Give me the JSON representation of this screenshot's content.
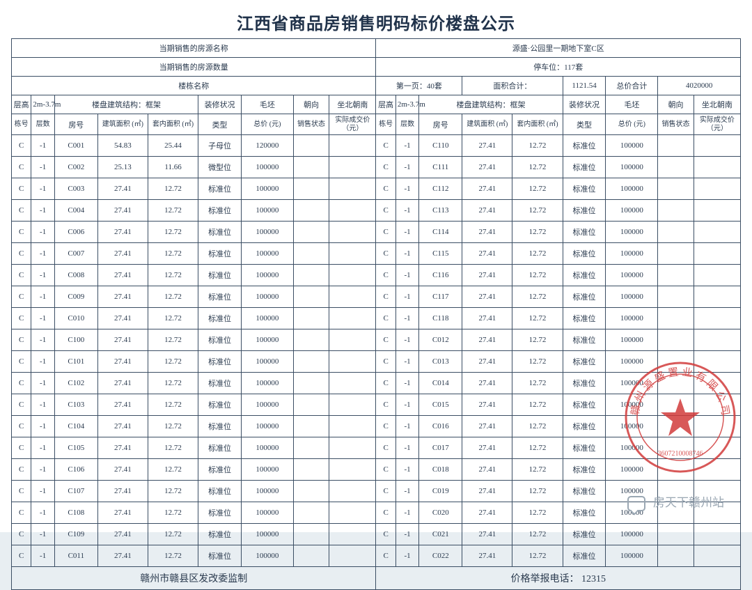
{
  "title": "江西省商品房销售明码标价楼盘公示",
  "header": {
    "src_name_label": "当期销售的房源名称",
    "src_name_value": "源盛·公园里一期地下室C区",
    "src_qty_label": "当期销售的房源数量",
    "src_qty_value": "停车位：117套",
    "bldg_name_label": "楼栋名称",
    "page_info": "第一页：40套",
    "area_total_label": "面积合计：",
    "area_total_value": "1121.54",
    "price_total_label": "总价合计",
    "price_total_value": "4020000",
    "height_label": "层高",
    "height_value": "2m-3.7m",
    "struct_label": "楼盘建筑结构：框架",
    "deco_label": "装修状况",
    "rough_label": "毛坯",
    "orient_label": "朝向",
    "orient_value": "坐北朝南",
    "cols": {
      "bldg": "栋号",
      "floor": "层数",
      "room": "房号",
      "area1": "建筑面积 (㎡)",
      "area2": "套内面积 (㎡)",
      "type": "类型",
      "price": "总价 (元)",
      "status": "销售状态",
      "actual": "实际成交价（元）"
    }
  },
  "rowsL": [
    [
      "C",
      "-1",
      "C001",
      "54.83",
      "25.44",
      "子母位",
      "120000",
      "",
      ""
    ],
    [
      "C",
      "-1",
      "C002",
      "25.13",
      "11.66",
      "微型位",
      "100000",
      "",
      ""
    ],
    [
      "C",
      "-1",
      "C003",
      "27.41",
      "12.72",
      "标准位",
      "100000",
      "",
      ""
    ],
    [
      "C",
      "-1",
      "C004",
      "27.41",
      "12.72",
      "标准位",
      "100000",
      "",
      ""
    ],
    [
      "C",
      "-1",
      "C006",
      "27.41",
      "12.72",
      "标准位",
      "100000",
      "",
      ""
    ],
    [
      "C",
      "-1",
      "C007",
      "27.41",
      "12.72",
      "标准位",
      "100000",
      "",
      ""
    ],
    [
      "C",
      "-1",
      "C008",
      "27.41",
      "12.72",
      "标准位",
      "100000",
      "",
      ""
    ],
    [
      "C",
      "-1",
      "C009",
      "27.41",
      "12.72",
      "标准位",
      "100000",
      "",
      ""
    ],
    [
      "C",
      "-1",
      "C010",
      "27.41",
      "12.72",
      "标准位",
      "100000",
      "",
      ""
    ],
    [
      "C",
      "-1",
      "C100",
      "27.41",
      "12.72",
      "标准位",
      "100000",
      "",
      ""
    ],
    [
      "C",
      "-1",
      "C101",
      "27.41",
      "12.72",
      "标准位",
      "100000",
      "",
      ""
    ],
    [
      "C",
      "-1",
      "C102",
      "27.41",
      "12.72",
      "标准位",
      "100000",
      "",
      ""
    ],
    [
      "C",
      "-1",
      "C103",
      "27.41",
      "12.72",
      "标准位",
      "100000",
      "",
      ""
    ],
    [
      "C",
      "-1",
      "C104",
      "27.41",
      "12.72",
      "标准位",
      "100000",
      "",
      ""
    ],
    [
      "C",
      "-1",
      "C105",
      "27.41",
      "12.72",
      "标准位",
      "100000",
      "",
      ""
    ],
    [
      "C",
      "-1",
      "C106",
      "27.41",
      "12.72",
      "标准位",
      "100000",
      "",
      ""
    ],
    [
      "C",
      "-1",
      "C107",
      "27.41",
      "12.72",
      "标准位",
      "100000",
      "",
      ""
    ],
    [
      "C",
      "-1",
      "C108",
      "27.41",
      "12.72",
      "标准位",
      "100000",
      "",
      ""
    ],
    [
      "C",
      "-1",
      "C109",
      "27.41",
      "12.72",
      "标准位",
      "100000",
      "",
      ""
    ],
    [
      "C",
      "-1",
      "C011",
      "27.41",
      "12.72",
      "标准位",
      "100000",
      "",
      ""
    ]
  ],
  "rowsR": [
    [
      "C",
      "-1",
      "C110",
      "27.41",
      "12.72",
      "标准位",
      "100000",
      "",
      ""
    ],
    [
      "C",
      "-1",
      "C111",
      "27.41",
      "12.72",
      "标准位",
      "100000",
      "",
      ""
    ],
    [
      "C",
      "-1",
      "C112",
      "27.41",
      "12.72",
      "标准位",
      "100000",
      "",
      ""
    ],
    [
      "C",
      "-1",
      "C113",
      "27.41",
      "12.72",
      "标准位",
      "100000",
      "",
      ""
    ],
    [
      "C",
      "-1",
      "C114",
      "27.41",
      "12.72",
      "标准位",
      "100000",
      "",
      ""
    ],
    [
      "C",
      "-1",
      "C115",
      "27.41",
      "12.72",
      "标准位",
      "100000",
      "",
      ""
    ],
    [
      "C",
      "-1",
      "C116",
      "27.41",
      "12.72",
      "标准位",
      "100000",
      "",
      ""
    ],
    [
      "C",
      "-1",
      "C117",
      "27.41",
      "12.72",
      "标准位",
      "100000",
      "",
      ""
    ],
    [
      "C",
      "-1",
      "C118",
      "27.41",
      "12.72",
      "标准位",
      "100000",
      "",
      ""
    ],
    [
      "C",
      "-1",
      "C012",
      "27.41",
      "12.72",
      "标准位",
      "100000",
      "",
      ""
    ],
    [
      "C",
      "-1",
      "C013",
      "27.41",
      "12.72",
      "标准位",
      "100000",
      "",
      ""
    ],
    [
      "C",
      "-1",
      "C014",
      "27.41",
      "12.72",
      "标准位",
      "100000",
      "",
      ""
    ],
    [
      "C",
      "-1",
      "C015",
      "27.41",
      "12.72",
      "标准位",
      "100000",
      "",
      ""
    ],
    [
      "C",
      "-1",
      "C016",
      "27.41",
      "12.72",
      "标准位",
      "100000",
      "",
      ""
    ],
    [
      "C",
      "-1",
      "C017",
      "27.41",
      "12.72",
      "标准位",
      "100000",
      "",
      ""
    ],
    [
      "C",
      "-1",
      "C018",
      "27.41",
      "12.72",
      "标准位",
      "100000",
      "",
      ""
    ],
    [
      "C",
      "-1",
      "C019",
      "27.41",
      "12.72",
      "标准位",
      "100000",
      "",
      ""
    ],
    [
      "C",
      "-1",
      "C020",
      "27.41",
      "12.72",
      "标准位",
      "100000",
      "",
      ""
    ],
    [
      "C",
      "-1",
      "C021",
      "27.41",
      "12.72",
      "标准位",
      "100000",
      "",
      ""
    ],
    [
      "C",
      "-1",
      "C022",
      "27.41",
      "12.72",
      "标准位",
      "100000",
      "",
      ""
    ]
  ],
  "footer": {
    "supervise": "赣州市赣县区发改委监制",
    "hotline_label": "价格举报电话：",
    "hotline": "12315"
  },
  "watermark": "房天下赣州站",
  "stamp_color": "#d23b3b"
}
